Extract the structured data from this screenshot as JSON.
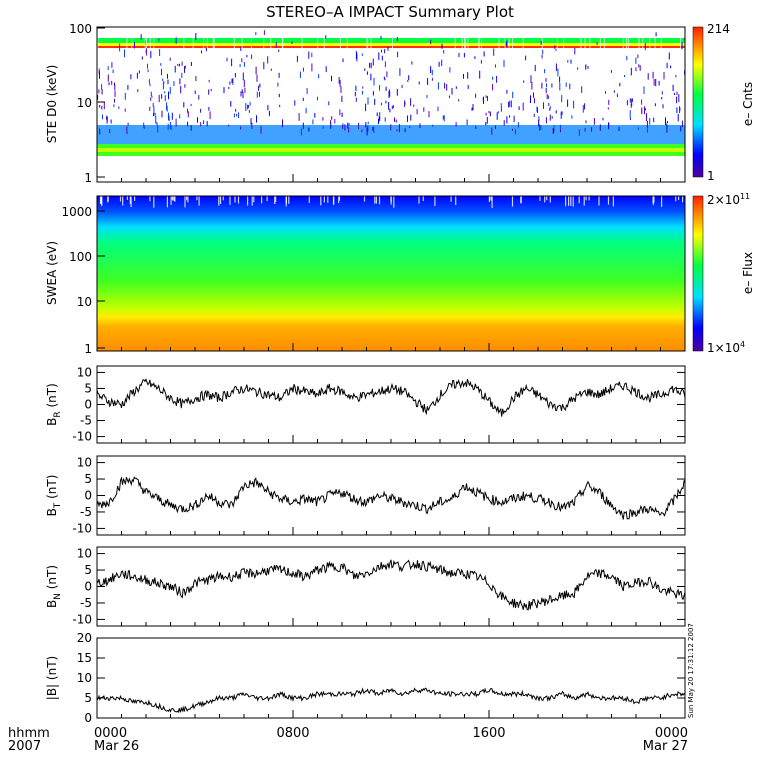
{
  "title": "STEREO–A IMPACT Summary Plot",
  "timestamp": "Sun May 20 17:31:12 2007",
  "colors": {
    "axis": "#000000",
    "trace": "#000000",
    "background": "#ffffff"
  },
  "chart_data": [
    {
      "type": "heatmap",
      "ylabel": "STE D0 (keV)",
      "yscale": "log",
      "ylim": [
        1,
        100
      ],
      "yticks": [
        "1",
        "10",
        "100"
      ],
      "colorbar": {
        "label": "e– Cnts",
        "max": "214",
        "min": "1"
      },
      "bands_description_keV": [
        {
          "from": 2,
          "to": 2.6,
          "level": "green-yellow"
        },
        {
          "from": 2.6,
          "to": 5,
          "level": "blue-cyan"
        },
        {
          "from": 55,
          "to": 68,
          "level": "red-yellow-green stripe"
        }
      ]
    },
    {
      "type": "heatmap",
      "ylabel": "SWEA (eV)",
      "yscale": "log",
      "ylim": [
        1,
        2000
      ],
      "yticks": [
        "1",
        "10",
        "100",
        "1000"
      ],
      "colorbar": {
        "label": "e– Flux",
        "max": "2×10",
        "max_exp": "11",
        "min": "1×10",
        "min_exp": "4"
      }
    },
    {
      "type": "line",
      "ylabel": "B",
      "ylabel_sub": "R",
      "ylabel_unit": "(nT)",
      "ylim": [
        -12,
        12
      ],
      "yticks": [
        "10",
        "5",
        "0",
        "-5",
        "-10"
      ],
      "series": [
        {
          "x_hours": [
            0,
            0.5,
            1,
            1.5,
            2,
            2.5,
            3,
            3.5,
            4,
            4.5,
            5,
            5.5,
            6,
            6.5,
            7,
            7.5,
            8,
            8.5,
            9,
            9.5,
            10,
            10.5,
            11,
            11.5,
            12,
            12.5,
            13,
            13.5,
            14,
            14.5,
            15,
            15.5,
            16,
            16.5,
            17,
            17.5,
            18,
            18.5,
            19,
            19.5,
            20,
            20.5,
            21,
            21.5,
            22,
            22.5,
            23,
            23.5,
            24
          ],
          "values": [
            3,
            1,
            0,
            4,
            7,
            5,
            2,
            0,
            2,
            3,
            2,
            4,
            5,
            4,
            3,
            2,
            5,
            4,
            3,
            5,
            4,
            2,
            3,
            4,
            5,
            4,
            1,
            -2,
            3,
            6,
            7,
            5,
            1,
            -3,
            2,
            5,
            3,
            0,
            -1,
            2,
            4,
            3,
            5,
            6,
            4,
            2,
            3,
            5,
            3
          ]
        }
      ]
    },
    {
      "type": "line",
      "ylabel": "B",
      "ylabel_sub": "T",
      "ylabel_unit": "(nT)",
      "ylim": [
        -12,
        12
      ],
      "yticks": [
        "10",
        "5",
        "0",
        "-5",
        "-10"
      ],
      "series": [
        {
          "x_hours": [
            0,
            0.5,
            1,
            1.5,
            2,
            2.5,
            3,
            3.5,
            4,
            4.5,
            5,
            5.5,
            6,
            6.5,
            7,
            7.5,
            8,
            8.5,
            9,
            9.5,
            10,
            10.5,
            11,
            11.5,
            12,
            12.5,
            13,
            13.5,
            14,
            14.5,
            15,
            15.5,
            16,
            16.5,
            17,
            17.5,
            18,
            18.5,
            19,
            19.5,
            20,
            20.5,
            21,
            21.5,
            22,
            22.5,
            23,
            23.5,
            24
          ],
          "values": [
            -3,
            -2,
            4,
            5,
            1,
            -1,
            -3,
            -4,
            -3,
            0,
            -2,
            -3,
            3,
            4,
            1,
            -1,
            -2,
            -1,
            -2,
            0,
            1,
            -1,
            -2,
            0,
            -1,
            -2,
            -3,
            -4,
            -2,
            -1,
            3,
            1,
            -1,
            -2,
            -1,
            0,
            -1,
            -2,
            -4,
            -2,
            3,
            1,
            -3,
            -6,
            -5,
            -4,
            -6,
            -2,
            4
          ]
        }
      ]
    },
    {
      "type": "line",
      "ylabel": "B",
      "ylabel_sub": "N",
      "ylabel_unit": "(nT)",
      "ylim": [
        -12,
        12
      ],
      "yticks": [
        "10",
        "5",
        "0",
        "-5",
        "-10"
      ],
      "series": [
        {
          "x_hours": [
            0,
            0.5,
            1,
            1.5,
            2,
            2.5,
            3,
            3.5,
            4,
            4.5,
            5,
            5.5,
            6,
            6.5,
            7,
            7.5,
            8,
            8.5,
            9,
            9.5,
            10,
            10.5,
            11,
            11.5,
            12,
            12.5,
            13,
            13.5,
            14,
            14.5,
            15,
            15.5,
            16,
            16.5,
            17,
            17.5,
            18,
            18.5,
            19,
            19.5,
            20,
            20.5,
            21,
            21.5,
            22,
            22.5,
            23,
            23.5,
            24
          ],
          "values": [
            1,
            2,
            4,
            3,
            2,
            1,
            0,
            -2,
            1,
            2,
            3,
            3,
            4,
            4,
            5,
            5,
            4,
            3,
            5,
            6,
            6,
            3,
            4,
            6,
            7,
            6,
            7,
            6,
            5,
            4,
            4,
            3,
            1,
            -3,
            -5,
            -6,
            -5,
            -4,
            -3,
            -2,
            3,
            4,
            3,
            0,
            1,
            2,
            -1,
            -2,
            -3
          ]
        }
      ]
    },
    {
      "type": "line",
      "ylabel": "|B|",
      "ylabel_unit": "(nT)",
      "ylim": [
        0,
        20
      ],
      "yticks": [
        "20",
        "15",
        "10",
        "5",
        "0"
      ],
      "series": [
        {
          "x_hours": [
            0,
            0.5,
            1,
            1.5,
            2,
            2.5,
            3,
            3.5,
            4,
            4.5,
            5,
            5.5,
            6,
            6.5,
            7,
            7.5,
            8,
            8.5,
            9,
            9.5,
            10,
            10.5,
            11,
            11.5,
            12,
            12.5,
            13,
            13.5,
            14,
            14.5,
            15,
            15.5,
            16,
            16.5,
            17,
            17.5,
            18,
            18.5,
            19,
            19.5,
            20,
            20.5,
            21,
            21.5,
            22,
            22.5,
            23,
            23.5,
            24
          ],
          "values": [
            5,
            5,
            5,
            4,
            4,
            3,
            2,
            2,
            3,
            4,
            5,
            5,
            6,
            5,
            5,
            6,
            5,
            5,
            6,
            6,
            6,
            6,
            7,
            6,
            7,
            6,
            7,
            7,
            6,
            6,
            6,
            6,
            7,
            6,
            6,
            6,
            5,
            5,
            6,
            5,
            6,
            5,
            5,
            5,
            4,
            5,
            5,
            6,
            6
          ]
        }
      ]
    }
  ],
  "xaxis": {
    "label_top": "hhmm",
    "label_bottom": "2007",
    "xlim_hours": [
      0,
      24
    ],
    "ticks": [
      {
        "hour": 0,
        "label": "0000",
        "sublabel": "Mar 26"
      },
      {
        "hour": 8,
        "label": "0800",
        "sublabel": ""
      },
      {
        "hour": 16,
        "label": "1600",
        "sublabel": ""
      },
      {
        "hour": 24,
        "label": "0000",
        "sublabel": "Mar 27"
      }
    ]
  }
}
